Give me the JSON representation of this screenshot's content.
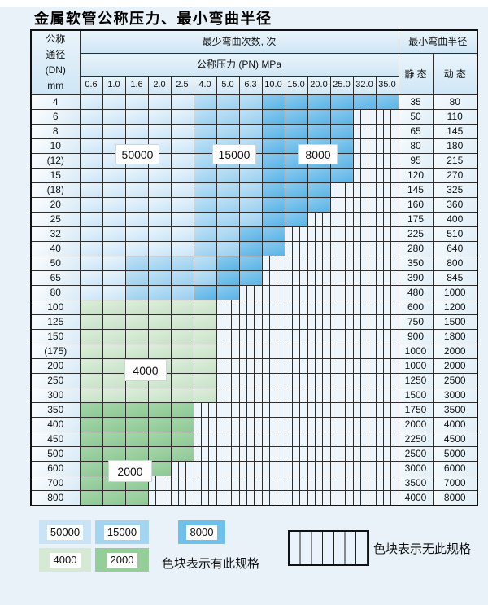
{
  "title": "金属软管公称压力、最小弯曲半径",
  "table": {
    "corner_header_lines": [
      "公称",
      "通径",
      "(DN)",
      "mm"
    ],
    "cycles_header": "最少弯曲次数, 次",
    "pressure_header": "公称压力 (PN) MPa",
    "radius_header": "最小弯曲半径",
    "static_header": "静 态",
    "dynamic_header": "动 态",
    "pressures": [
      "0.6",
      "1.0",
      "1.6",
      "2.0",
      "2.5",
      "4.0",
      "5.0",
      "6.3",
      "10.0",
      "15.0",
      "20.0",
      "25.0",
      "32.0",
      "35.0"
    ],
    "rows": [
      {
        "dn": "4",
        "static": "35",
        "dynamic": "80",
        "band": "blue",
        "light": 4,
        "mid": 7,
        "end": 13
      },
      {
        "dn": "6",
        "static": "50",
        "dynamic": "110",
        "band": "blue",
        "light": 4,
        "mid": 7,
        "end": 11
      },
      {
        "dn": "8",
        "static": "65",
        "dynamic": "145",
        "band": "blue",
        "light": 4,
        "mid": 7,
        "end": 11
      },
      {
        "dn": "10",
        "static": "80",
        "dynamic": "180",
        "band": "blue",
        "light": 4,
        "mid": 7,
        "end": 11
      },
      {
        "dn": "(12)",
        "static": "95",
        "dynamic": "215",
        "band": "blue",
        "light": 4,
        "mid": 7,
        "end": 11
      },
      {
        "dn": "15",
        "static": "120",
        "dynamic": "270",
        "band": "blue",
        "light": 4,
        "mid": 7,
        "end": 11
      },
      {
        "dn": "(18)",
        "static": "145",
        "dynamic": "325",
        "band": "blue",
        "light": 4,
        "mid": 7,
        "end": 10
      },
      {
        "dn": "20",
        "static": "160",
        "dynamic": "360",
        "band": "blue",
        "light": 4,
        "mid": 7,
        "end": 10
      },
      {
        "dn": "25",
        "static": "175",
        "dynamic": "400",
        "band": "blue",
        "light": 4,
        "mid": 7,
        "end": 9
      },
      {
        "dn": "32",
        "static": "225",
        "dynamic": "510",
        "band": "blue",
        "light": 4,
        "mid": 6,
        "end": 8
      },
      {
        "dn": "40",
        "static": "280",
        "dynamic": "640",
        "band": "blue",
        "light": 4,
        "mid": 6,
        "end": 8
      },
      {
        "dn": "50",
        "static": "350",
        "dynamic": "800",
        "band": "blue",
        "light": 1,
        "mid": 5,
        "end": 7
      },
      {
        "dn": "65",
        "static": "390",
        "dynamic": "845",
        "band": "blue",
        "light": 1,
        "mid": 5,
        "end": 7
      },
      {
        "dn": "80",
        "static": "480",
        "dynamic": "1000",
        "band": "blue",
        "light": 1,
        "mid": 4,
        "end": 6
      },
      {
        "dn": "100",
        "static": "600",
        "dynamic": "1200",
        "band": "green-light",
        "end": 5
      },
      {
        "dn": "125",
        "static": "750",
        "dynamic": "1500",
        "band": "green-light",
        "end": 5
      },
      {
        "dn": "150",
        "static": "900",
        "dynamic": "1800",
        "band": "green-light",
        "end": 5
      },
      {
        "dn": "(175)",
        "static": "1000",
        "dynamic": "2000",
        "band": "green-light",
        "end": 5
      },
      {
        "dn": "200",
        "static": "1000",
        "dynamic": "2000",
        "band": "green-light",
        "end": 5
      },
      {
        "dn": "250",
        "static": "1250",
        "dynamic": "2500",
        "band": "green-light",
        "end": 5
      },
      {
        "dn": "300",
        "static": "1500",
        "dynamic": "3000",
        "band": "green-light",
        "end": 5
      },
      {
        "dn": "350",
        "static": "1750",
        "dynamic": "3500",
        "band": "green-dark",
        "end": 4
      },
      {
        "dn": "400",
        "static": "2000",
        "dynamic": "4000",
        "band": "green-dark",
        "end": 4
      },
      {
        "dn": "450",
        "static": "2250",
        "dynamic": "4500",
        "band": "green-dark",
        "end": 4
      },
      {
        "dn": "500",
        "static": "2500",
        "dynamic": "5000",
        "band": "green-dark",
        "end": 4
      },
      {
        "dn": "600",
        "static": "3000",
        "dynamic": "6000",
        "band": "green-dark",
        "end": 3
      },
      {
        "dn": "700",
        "static": "3500",
        "dynamic": "7000",
        "band": "green-dark",
        "end": 2
      },
      {
        "dn": "800",
        "static": "4000",
        "dynamic": "8000",
        "band": "green-dark",
        "end": 2
      }
    ]
  },
  "zone_colors": {
    "cycles_50000": "#c9e4f6",
    "cycles_15000": "#a3d4f0",
    "cycles_8000": "#6fc0ea",
    "cycles_4000": "#d6e9d4",
    "cycles_2000": "#96ce9a"
  },
  "overlays": [
    {
      "label": "50000"
    },
    {
      "label": "15000"
    },
    {
      "label": "8000"
    },
    {
      "label": "4000"
    },
    {
      "label": "2000"
    }
  ],
  "legend": {
    "swatches": [
      {
        "label": "50000",
        "color": "#c9e4f6"
      },
      {
        "label": "15000",
        "color": "#a3d4f0"
      },
      {
        "label": "8000",
        "color": "#6fc0ea"
      },
      {
        "label": "4000",
        "color": "#d6e9d4"
      },
      {
        "label": "2000",
        "color": "#96ce9a"
      }
    ],
    "has_spec_note": "色块表示有此规格",
    "no_spec_note": "色块表示无此规格"
  }
}
